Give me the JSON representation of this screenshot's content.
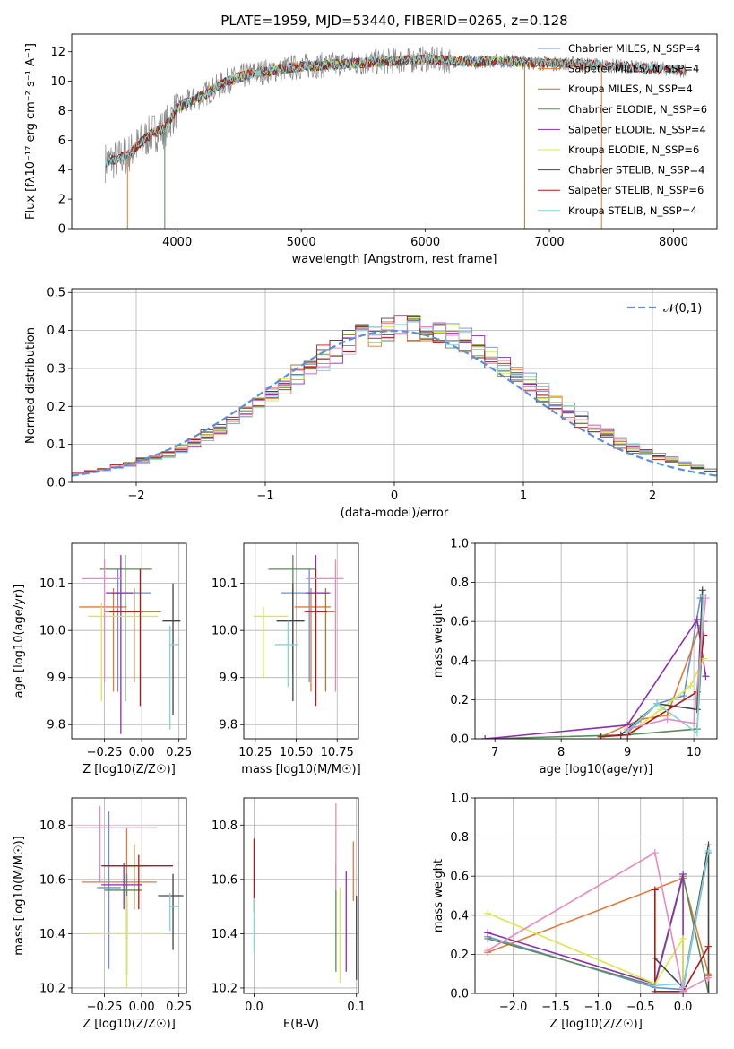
{
  "palette": {
    "Chabrier MILES": "#6a8fd6",
    "Salpeter MILES": "#e07b39",
    "Kroupa MILES": "#a27c3a",
    "Chabrier ELODIE": "#5c8a58",
    "Salpeter ELODIE": "#8b2fb0",
    "Kroupa ELODIE": "#d9e84a",
    "Chabrier STELIB": "#444444",
    "Salpeter STELIB": "#b01818",
    "Kroupa STELIB": "#7fd6d6",
    "Kroupa MILES alt": "#e58bc0",
    "normal": "#5b8fd9"
  },
  "chart_data": [
    {
      "id": "spectrum",
      "type": "line",
      "title": "PLATE=1959, MJD=53440, FIBERID=0265, z=0.128",
      "xlabel": "wavelength [Angstrom, rest frame]",
      "ylabel": "Flux [fλ10⁻¹⁷ erg cm⁻² s⁻¹ A⁻¹]",
      "xlim": [
        3150,
        8350
      ],
      "ylim": [
        0,
        13.2
      ],
      "xticks": [
        4000,
        5000,
        6000,
        7000,
        8000
      ],
      "yticks": [
        0,
        2,
        4,
        6,
        8,
        10,
        12
      ],
      "legend_position": "top-right",
      "legend": [
        "Chabrier MILES, N_SSP=4",
        "Salpeter MILES, N_SSP=4",
        "Kroupa MILES, N_SSP=4",
        "Chabrier ELODIE, N_SSP=6",
        "Salpeter ELODIE, N_SSP=4",
        "Kroupa ELODIE, N_SSP=6",
        "Chabrier STELIB, N_SSP=4",
        "Salpeter STELIB, N_SSP=6",
        "Kroupa STELIB, N_SSP=4"
      ],
      "data_curve": {
        "x": [
          3420,
          3500,
          3600,
          3700,
          3800,
          3900,
          4000,
          4100,
          4200,
          4400,
          4600,
          4800,
          5000,
          5200,
          5400,
          5600,
          5800,
          6000,
          6200,
          6400,
          6600,
          6800,
          7000,
          7200,
          7400,
          7600,
          7800,
          8000,
          8100
        ],
        "y": [
          4.5,
          4.7,
          5.0,
          5.8,
          6.5,
          6.8,
          8.2,
          8.6,
          9.0,
          10.0,
          10.5,
          10.8,
          11.0,
          11.1,
          11.2,
          11.3,
          11.4,
          11.5,
          11.4,
          11.3,
          11.4,
          11.3,
          11.2,
          11.2,
          11.1,
          11.0,
          10.9,
          10.8,
          10.7
        ]
      },
      "grid": false
    },
    {
      "id": "residuals",
      "type": "bar",
      "xlabel": "(data-model)/error",
      "ylabel": "Normed distribution",
      "xlim": [
        -2.5,
        2.5
      ],
      "ylim": [
        0,
        0.51
      ],
      "xticks": [
        -2,
        -1,
        0,
        1,
        2
      ],
      "yticks": [
        0.0,
        0.1,
        0.2,
        0.3,
        0.4,
        0.5
      ],
      "legend": [
        "𝒩(0,1)"
      ],
      "legend_position": "top-right",
      "grid": true
    },
    {
      "id": "age-vs-Z",
      "type": "scatter",
      "xlabel": "Z [log10(Z/Z☉)]",
      "ylabel": "age  [log10(age/yr)]",
      "xlim": [
        -0.47,
        0.3
      ],
      "ylim": [
        9.77,
        10.185
      ],
      "xticks": [
        -0.25,
        0.0,
        0.25
      ],
      "yticks": [
        9.8,
        9.9,
        10.0,
        10.1
      ],
      "points": [
        {
          "model": "Chabrier MILES",
          "x": -0.16,
          "xerr": [
            0.05,
            0.22
          ],
          "y": 10.08,
          "yerr": [
            0.21,
            0.05
          ]
        },
        {
          "model": "Salpeter MILES",
          "x": -0.19,
          "xerr": [
            0.23,
            0.09
          ],
          "y": 10.05,
          "yerr": [
            0.18,
            0.04
          ]
        },
        {
          "model": "Kroupa MILES",
          "x": -0.05,
          "xerr": [
            0.2,
            0.18
          ],
          "y": 10.04,
          "yerr": [
            0.15,
            0.05
          ]
        },
        {
          "model": "Chabrier ELODIE",
          "x": -0.11,
          "xerr": [
            0.17,
            0.18
          ],
          "y": 10.13,
          "yerr": [
            0.28,
            0.03
          ]
        },
        {
          "model": "Salpeter ELODIE",
          "x": -0.14,
          "xerr": [
            0.1,
            0.08
          ],
          "y": 10.08,
          "yerr": [
            0.3,
            0.08
          ]
        },
        {
          "model": "Kroupa ELODIE",
          "x": -0.27,
          "xerr": [
            0.09,
            0.38
          ],
          "y": 10.03,
          "yerr": [
            0.18,
            0.03
          ]
        },
        {
          "model": "Chabrier STELIB",
          "x": 0.21,
          "xerr": [
            0.07,
            0.05
          ],
          "y": 10.02,
          "yerr": [
            0.2,
            0.08
          ]
        },
        {
          "model": "Salpeter STELIB",
          "x": -0.01,
          "xerr": [
            0.21,
            0.0
          ],
          "y": 10.04,
          "yerr": [
            0.2,
            0.09
          ]
        },
        {
          "model": "Kroupa STELIB",
          "x": 0.19,
          "xerr": [
            0.0,
            0.06
          ],
          "y": 9.97,
          "yerr": [
            0.18,
            0.04
          ]
        },
        {
          "model": "Kroupa MILES alt",
          "x": -0.25,
          "xerr": [
            0.15,
            0.11
          ],
          "y": 10.11,
          "yerr": [
            0.22,
            0.04
          ]
        }
      ],
      "grid": true
    },
    {
      "id": "age-vs-mass",
      "type": "scatter",
      "xlabel": "mass [log10(M/M☉)]",
      "ylabel": "",
      "xlim": [
        10.18,
        10.88
      ],
      "ylim": [
        9.77,
        10.185
      ],
      "xticks": [
        10.25,
        10.5,
        10.75
      ],
      "yticks": [
        9.8,
        9.9,
        10.0,
        10.1
      ],
      "points": [
        {
          "model": "Chabrier MILES",
          "x": 10.58,
          "xerr": [
            0.17,
            0.13
          ],
          "y": 10.08,
          "yerr": [
            0.19,
            0.05
          ]
        },
        {
          "model": "Salpeter MILES",
          "x": 10.59,
          "xerr": [
            0.1,
            0.12
          ],
          "y": 10.05,
          "yerr": [
            0.18,
            0.04
          ]
        },
        {
          "model": "Kroupa MILES",
          "x": 10.68,
          "xerr": [
            0.05,
            0.06
          ],
          "y": 10.04,
          "yerr": [
            0.17,
            0.05
          ]
        },
        {
          "model": "Chabrier ELODIE",
          "x": 10.48,
          "xerr": [
            0.15,
            0.14
          ],
          "y": 10.13,
          "yerr": [
            0.22,
            0.03
          ]
        },
        {
          "model": "Salpeter ELODIE",
          "x": 10.62,
          "xerr": [
            0.06,
            0.08
          ],
          "y": 10.08,
          "yerr": [
            0.23,
            0.08
          ]
        },
        {
          "model": "Kroupa ELODIE",
          "x": 10.3,
          "xerr": [
            0.06,
            0.15
          ],
          "y": 10.03,
          "yerr": [
            0.13,
            0.02
          ]
        },
        {
          "model": "Chabrier STELIB",
          "x": 10.48,
          "xerr": [
            0.1,
            0.07
          ],
          "y": 10.02,
          "yerr": [
            0.17,
            0.08
          ]
        },
        {
          "model": "Salpeter STELIB",
          "x": 10.62,
          "xerr": [
            0.07,
            0.07
          ],
          "y": 10.04,
          "yerr": [
            0.2,
            0.09
          ]
        },
        {
          "model": "Kroupa STELIB",
          "x": 10.45,
          "xerr": [
            0.08,
            0.06
          ],
          "y": 9.97,
          "yerr": [
            0.09,
            0.05
          ]
        },
        {
          "model": "Kroupa MILES alt",
          "x": 10.74,
          "xerr": [
            0.18,
            0.05
          ],
          "y": 10.11,
          "yerr": [
            0.24,
            0.04
          ]
        }
      ],
      "grid": true
    },
    {
      "id": "massweight-vs-age",
      "type": "line",
      "xlabel": "age  [log10(age/yr)]",
      "ylabel": "mass weight",
      "xlim": [
        6.7,
        10.35
      ],
      "ylim": [
        0,
        1.0
      ],
      "xticks": [
        7,
        8,
        9,
        10
      ],
      "yticks": [
        0.0,
        0.2,
        0.4,
        0.6,
        0.8,
        1.0
      ],
      "series": [
        {
          "model": "Chabrier MILES",
          "x": [
            9.0,
            9.45,
            9.85,
            10.1
          ],
          "y": [
            0.03,
            0.18,
            0.22,
            0.72
          ]
        },
        {
          "model": "Salpeter MILES",
          "x": [
            8.6,
            9.2,
            9.6,
            10.1
          ],
          "y": [
            0.01,
            0.1,
            0.12,
            0.58
          ]
        },
        {
          "model": "Chabrier ELODIE",
          "x": [
            6.85,
            9.0,
            10.05,
            10.15
          ],
          "y": [
            0.0,
            0.02,
            0.05,
            0.6
          ]
        },
        {
          "model": "Salpeter ELODIE",
          "x": [
            6.85,
            9.0,
            10.05,
            10.18
          ],
          "y": [
            0.0,
            0.07,
            0.61,
            0.32
          ]
        },
        {
          "model": "Kroupa ELODIE",
          "x": [
            9.0,
            9.5,
            9.95,
            10.15
          ],
          "y": [
            0.02,
            0.15,
            0.27,
            0.41
          ]
        },
        {
          "model": "Chabrier STELIB",
          "x": [
            8.9,
            9.45,
            10.05,
            10.13
          ],
          "y": [
            0.02,
            0.18,
            0.15,
            0.76
          ]
        },
        {
          "model": "Salpeter STELIB",
          "x": [
            8.6,
            9.0,
            10.05,
            10.15
          ],
          "y": [
            0.01,
            0.02,
            0.24,
            0.53
          ]
        },
        {
          "model": "Kroupa STELIB",
          "x": [
            9.0,
            9.45,
            10.05,
            10.14
          ],
          "y": [
            0.04,
            0.18,
            0.03,
            0.73
          ]
        },
        {
          "model": "Kroupa MILES alt",
          "x": [
            9.0,
            9.6,
            10.0,
            10.18
          ],
          "y": [
            0.05,
            0.1,
            0.08,
            0.72
          ]
        }
      ],
      "grid": true
    },
    {
      "id": "mass-vs-Z",
      "type": "scatter",
      "xlabel": "Z [log10(Z/Z☉)]",
      "ylabel": "mass [log10(M/M☉)]",
      "xlim": [
        -0.47,
        0.3
      ],
      "ylim": [
        10.18,
        10.9
      ],
      "xticks": [
        -0.25,
        0.0,
        0.25
      ],
      "yticks": [
        10.2,
        10.4,
        10.6,
        10.8
      ],
      "points": [
        {
          "model": "Chabrier MILES",
          "x": -0.22,
          "xerr": [
            0.08,
            0.08
          ],
          "y": 10.57,
          "yerr": [
            0.3,
            0.28
          ]
        },
        {
          "model": "Salpeter MILES",
          "x": -0.1,
          "xerr": [
            0.3,
            0.2
          ],
          "y": 10.59,
          "yerr": [
            0.21,
            0.2
          ]
        },
        {
          "model": "Kroupa MILES",
          "x": -0.05,
          "xerr": [
            0.2,
            0.1
          ],
          "y": 10.65,
          "yerr": [
            0.16,
            0.08
          ]
        },
        {
          "model": "Chabrier ELODIE",
          "x": -0.1,
          "xerr": [
            0.15,
            0.1
          ],
          "y": 10.56,
          "yerr": [
            0.31,
            0.06
          ]
        },
        {
          "model": "Salpeter ELODIE",
          "x": -0.12,
          "xerr": [
            0.15,
            0.12
          ],
          "y": 10.58,
          "yerr": [
            0.09,
            0.08
          ]
        },
        {
          "model": "Kroupa ELODIE",
          "x": -0.1,
          "xerr": [
            0.25,
            0.25
          ],
          "y": 10.4,
          "yerr": [
            0.2,
            0.14
          ]
        },
        {
          "model": "Chabrier STELIB",
          "x": 0.21,
          "xerr": [
            0.1,
            0.07
          ],
          "y": 10.54,
          "yerr": [
            0.2,
            0.08
          ]
        },
        {
          "model": "Salpeter STELIB",
          "x": -0.02,
          "xerr": [
            0.25,
            0.23
          ],
          "y": 10.65,
          "yerr": [
            0.16,
            0.04
          ]
        },
        {
          "model": "Kroupa STELIB",
          "x": 0.19,
          "xerr": [
            0.0,
            0.06
          ],
          "y": 10.5,
          "yerr": [
            0.09,
            0.05
          ]
        },
        {
          "model": "Kroupa MILES alt",
          "x": -0.28,
          "xerr": [
            0.17,
            0.38
          ],
          "y": 10.79,
          "yerr": [
            0.2,
            0.08
          ]
        }
      ],
      "grid": true
    },
    {
      "id": "mass-vs-ebv",
      "type": "scatter",
      "xlabel": "E(B-V)",
      "ylabel": "",
      "xlim": [
        -0.01,
        0.102
      ],
      "ylim": [
        10.18,
        10.9
      ],
      "xticks": [
        0.0,
        0.1
      ],
      "yticks": [
        10.2,
        10.4,
        10.6,
        10.8
      ],
      "points": [
        {
          "model": "Salpeter STELIB",
          "x": 0.0,
          "y": 10.6,
          "yerr": [
            0.12,
            0.15
          ]
        },
        {
          "model": "Kroupa STELIB",
          "x": 0.0,
          "y": 10.5,
          "yerr": [
            0.17,
            0.03
          ]
        },
        {
          "model": "Chabrier ELODIE",
          "x": 0.08,
          "y": 10.55,
          "yerr": [
            0.29,
            0.11
          ]
        },
        {
          "model": "Kroupa MILES alt",
          "x": 0.08,
          "y": 10.79,
          "yerr": [
            0.23,
            0.09
          ]
        },
        {
          "model": "Kroupa ELODIE",
          "x": 0.084,
          "y": 10.42,
          "yerr": [
            0.2,
            0.15
          ]
        },
        {
          "model": "Salpeter ELODIE",
          "x": 0.09,
          "y": 10.55,
          "yerr": [
            0.29,
            0.08
          ]
        },
        {
          "model": "Salpeter MILES",
          "x": 0.097,
          "y": 10.6,
          "yerr": [
            0.08,
            0.14
          ]
        },
        {
          "model": "Chabrier STELIB",
          "x": 0.1,
          "y": 10.5,
          "yerr": [
            0.27,
            0.04
          ]
        }
      ],
      "grid": true
    },
    {
      "id": "massweight-vs-Z",
      "type": "line",
      "xlabel": "Z [log10(Z/Z☉)]",
      "ylabel": "mass weight",
      "xlim": [
        -2.45,
        0.4
      ],
      "ylim": [
        0,
        1.0
      ],
      "xticks": [
        -2.0,
        -1.5,
        -1.0,
        -0.5,
        0.0
      ],
      "yticks": [
        0.0,
        0.2,
        0.4,
        0.6,
        0.8,
        1.0
      ],
      "series": [
        {
          "model": "Chabrier MILES",
          "x": [
            -2.3,
            -0.33,
            0.0,
            0.3
          ],
          "y": [
            0.29,
            0.03,
            0.02,
            0.72
          ]
        },
        {
          "model": "Salpeter MILES",
          "x": [
            -2.3,
            0.0,
            0.3,
            0.3
          ],
          "y": [
            0.21,
            0.59,
            0.1,
            0.09
          ]
        },
        {
          "model": "Chabrier ELODIE",
          "x": [
            -2.3,
            -0.33,
            0.0,
            0.3
          ],
          "y": [
            0.28,
            0.04,
            0.6,
            0.0
          ]
        },
        {
          "model": "Salpeter ELODIE",
          "x": [
            -2.3,
            -0.33,
            0.0,
            0.0
          ],
          "y": [
            0.31,
            0.05,
            0.61,
            0.01
          ]
        },
        {
          "model": "Kroupa ELODIE",
          "x": [
            -2.3,
            -0.33,
            0.0,
            0.0
          ],
          "y": [
            0.41,
            0.05,
            0.28,
            0.01
          ]
        },
        {
          "model": "Chabrier STELIB",
          "x": [
            -0.33,
            0.0,
            0.3,
            0.3
          ],
          "y": [
            0.18,
            0.03,
            0.76,
            0.0
          ]
        },
        {
          "model": "Salpeter STELIB",
          "x": [
            -0.33,
            -0.33,
            0.0,
            0.3
          ],
          "y": [
            0.53,
            0.01,
            0.01,
            0.24
          ]
        },
        {
          "model": "Kroupa STELIB",
          "x": [
            -0.33,
            0.0,
            0.0,
            0.3
          ],
          "y": [
            0.04,
            0.05,
            0.03,
            0.73
          ]
        },
        {
          "model": "Kroupa MILES alt",
          "x": [
            -2.3,
            -0.33,
            0.0,
            0.3
          ],
          "y": [
            0.22,
            0.72,
            0.01,
            0.08
          ]
        }
      ],
      "grid": true
    }
  ]
}
